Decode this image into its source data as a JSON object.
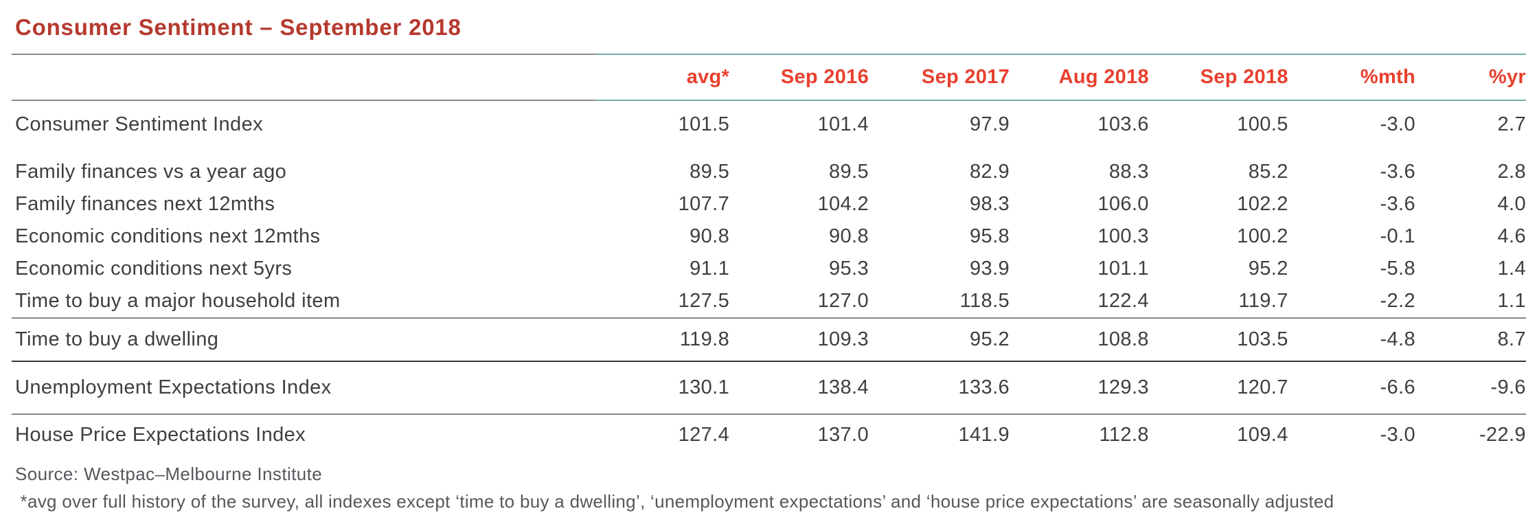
{
  "title": "Consumer Sentiment – September 2018",
  "table": {
    "columns": [
      "avg*",
      "Sep 2016",
      "Sep 2017",
      "Aug 2018",
      "Sep 2018",
      "%mth",
      "%yr"
    ],
    "rows": [
      {
        "label": "Consumer Sentiment Index",
        "style": "lead",
        "rule_before": "",
        "values": [
          "101.5",
          "101.4",
          "97.9",
          "103.6",
          "100.5",
          "-3.0",
          "2.7"
        ]
      },
      {
        "label": "Family finances vs a year ago",
        "style": "compact",
        "rule_before": "",
        "values": [
          "89.5",
          "89.5",
          "82.9",
          "88.3",
          "85.2",
          "-3.6",
          "2.8"
        ]
      },
      {
        "label": "Family finances next 12mths",
        "style": "compact",
        "rule_before": "",
        "values": [
          "107.7",
          "104.2",
          "98.3",
          "106.0",
          "102.2",
          "-3.6",
          "4.0"
        ]
      },
      {
        "label": "Economic conditions next 12mths",
        "style": "compact",
        "rule_before": "",
        "values": [
          "90.8",
          "90.8",
          "95.8",
          "100.3",
          "100.2",
          "-0.1",
          "4.6"
        ]
      },
      {
        "label": "Economic conditions next 5yrs",
        "style": "compact",
        "rule_before": "",
        "values": [
          "91.1",
          "95.3",
          "93.9",
          "101.1",
          "95.2",
          "-5.8",
          "1.4"
        ]
      },
      {
        "label": "Time to buy a major household item",
        "style": "compact",
        "rule_before": "",
        "values": [
          "127.5",
          "127.0",
          "118.5",
          "122.4",
          "119.7",
          "-2.2",
          "1.1"
        ]
      },
      {
        "label": "Time to buy a dwelling",
        "style": "section",
        "rule_before": "gray",
        "values": [
          "119.8",
          "109.3",
          "95.2",
          "108.8",
          "103.5",
          "-4.8",
          "8.7"
        ]
      },
      {
        "label": "Unemployment Expectations Index",
        "style": "section-tall",
        "rule_before": "dark",
        "values": [
          "130.1",
          "138.4",
          "133.6",
          "129.3",
          "120.7",
          "-6.6",
          "-9.6"
        ]
      },
      {
        "label": "House Price Expectations Index",
        "style": "last",
        "rule_before": "gray",
        "values": [
          "127.4",
          "137.0",
          "141.9",
          "112.8",
          "109.4",
          "-3.0",
          "-22.9"
        ]
      }
    ]
  },
  "source": "Source: Westpac–Melbourne Institute",
  "footnote": " *avg over full history of the survey, all indexes except ‘time to buy a dwelling’, ‘unemployment expectations’ and ‘house price expectations’ are seasonally adjusted",
  "colors": {
    "title_red": "#b5392e",
    "header_red": "#e8402e",
    "body_text": "#3e3e43",
    "muted_text": "#56575c",
    "rule_gray": "#88888c",
    "rule_dark": "#35353a",
    "rule_teal": "#74aaa6"
  },
  "chart_data": {
    "type": "table",
    "title": "Consumer Sentiment – September 2018",
    "categories": [
      "avg*",
      "Sep 2016",
      "Sep 2017",
      "Aug 2018",
      "Sep 2018",
      "%mth",
      "%yr"
    ],
    "series": [
      {
        "name": "Consumer Sentiment Index",
        "values": [
          101.5,
          101.4,
          97.9,
          103.6,
          100.5,
          -3.0,
          2.7
        ]
      },
      {
        "name": "Family finances vs a year ago",
        "values": [
          89.5,
          89.5,
          82.9,
          88.3,
          85.2,
          -3.6,
          2.8
        ]
      },
      {
        "name": "Family finances next 12mths",
        "values": [
          107.7,
          104.2,
          98.3,
          106.0,
          102.2,
          -3.6,
          4.0
        ]
      },
      {
        "name": "Economic conditions next 12mths",
        "values": [
          90.8,
          90.8,
          95.8,
          100.3,
          100.2,
          -0.1,
          4.6
        ]
      },
      {
        "name": "Economic conditions next 5yrs",
        "values": [
          91.1,
          95.3,
          93.9,
          101.1,
          95.2,
          -5.8,
          1.4
        ]
      },
      {
        "name": "Time to buy a major household item",
        "values": [
          127.5,
          127.0,
          118.5,
          122.4,
          119.7,
          -2.2,
          1.1
        ]
      },
      {
        "name": "Time to buy a dwelling",
        "values": [
          119.8,
          109.3,
          95.2,
          108.8,
          103.5,
          -4.8,
          8.7
        ]
      },
      {
        "name": "Unemployment Expectations Index",
        "values": [
          130.1,
          138.4,
          133.6,
          129.3,
          120.7,
          -6.6,
          -9.6
        ]
      },
      {
        "name": "House Price Expectations Index",
        "values": [
          127.4,
          137.0,
          141.9,
          112.8,
          109.4,
          -3.0,
          -22.9
        ]
      }
    ]
  }
}
